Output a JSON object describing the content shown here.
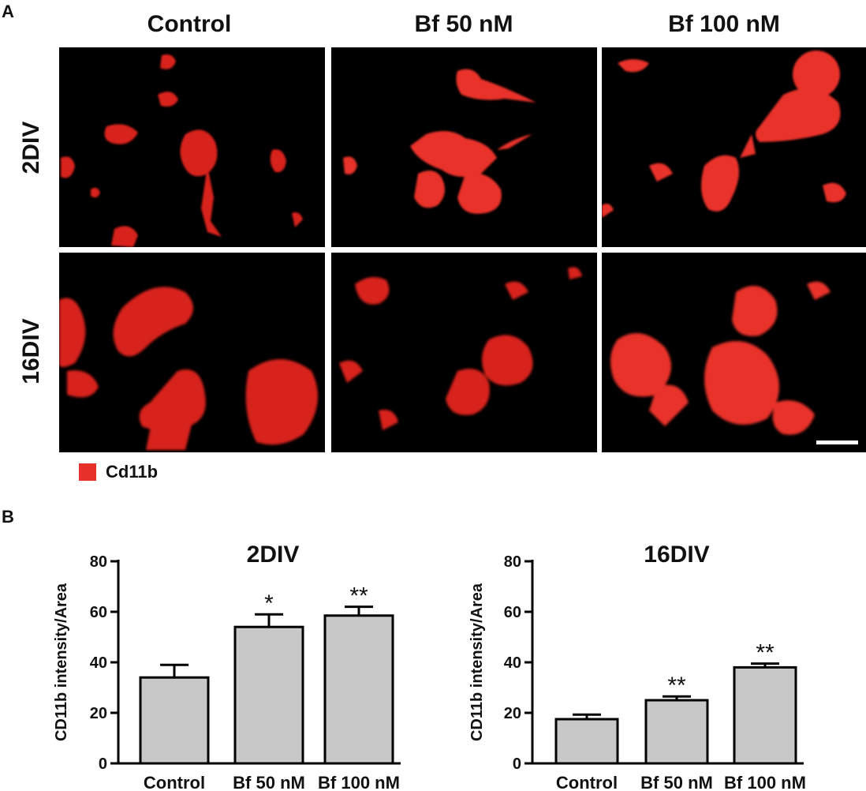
{
  "panel_a": {
    "letter": "A",
    "columns": [
      "Control",
      "Bf 50 nM",
      "Bf 100 nM"
    ],
    "rows": [
      "2DIV",
      "16DIV"
    ],
    "legend": {
      "label": "Cd11b",
      "color": "#e8302a"
    }
  },
  "panel_b": {
    "letter": "B"
  },
  "colors": {
    "bar_fill": "#c8c8c8",
    "bar_stroke": "#000000",
    "signal": "#e8302a"
  },
  "chart_data": [
    {
      "type": "bar",
      "title": "2DIV",
      "ylabel": "CD11b intensity/Area",
      "xlabel": "",
      "ylim": [
        0,
        80
      ],
      "yticks": [
        0,
        20,
        40,
        60,
        80
      ],
      "categories": [
        "Control",
        "Bf 50 nM",
        "Bf 100 nM"
      ],
      "values": [
        34,
        54,
        58.5
      ],
      "errors": [
        5,
        5,
        3.5
      ],
      "annotations": [
        "",
        "*",
        "**"
      ]
    },
    {
      "type": "bar",
      "title": "16DIV",
      "ylabel": "CD11b intensity/Area",
      "xlabel": "",
      "ylim": [
        0,
        80
      ],
      "yticks": [
        0,
        20,
        40,
        60,
        80
      ],
      "categories": [
        "Control",
        "Bf 50 nM",
        "Bf 100 nM"
      ],
      "values": [
        17.5,
        25,
        38
      ],
      "errors": [
        1.8,
        1.5,
        1.5
      ],
      "annotations": [
        "",
        "**",
        "**"
      ]
    }
  ]
}
